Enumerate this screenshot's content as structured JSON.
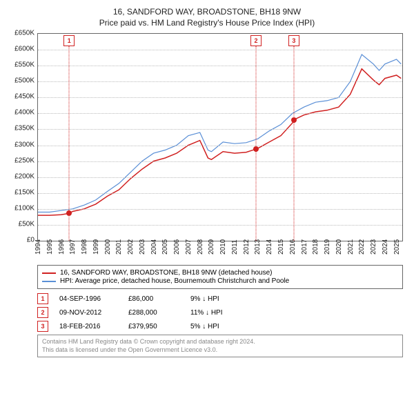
{
  "titles": {
    "main": "16, SANDFORD WAY, BROADSTONE, BH18 9NW",
    "sub": "Price paid vs. HM Land Registry's House Price Index (HPI)"
  },
  "chart": {
    "type": "line",
    "background_color": "#ffffff",
    "border_color": "#666666",
    "grid_color": "#bbbbbb",
    "x": {
      "min": 1994,
      "max": 2025.5,
      "ticks": [
        1994,
        1995,
        1996,
        1997,
        1998,
        1999,
        2000,
        2001,
        2002,
        2003,
        2004,
        2005,
        2006,
        2007,
        2008,
        2009,
        2010,
        2011,
        2012,
        2013,
        2014,
        2015,
        2016,
        2017,
        2018,
        2019,
        2020,
        2021,
        2022,
        2023,
        2024,
        2025
      ],
      "tick_fontsize": 10
    },
    "y": {
      "min": 0,
      "max": 650000,
      "tick_step": 50000,
      "ticks": [
        0,
        50000,
        100000,
        150000,
        200000,
        250000,
        300000,
        350000,
        400000,
        450000,
        500000,
        550000,
        600000,
        650000
      ],
      "tick_labels": [
        "£0",
        "£50K",
        "£100K",
        "£150K",
        "£200K",
        "£250K",
        "£300K",
        "£350K",
        "£400K",
        "£450K",
        "£500K",
        "£550K",
        "£600K",
        "£650K"
      ],
      "tick_fontsize": 10
    },
    "series": [
      {
        "name": "subject",
        "label": "16, SANDFORD WAY, BROADSTONE, BH18 9NW (detached house)",
        "color": "#d02020",
        "line_width": 1.5,
        "x": [
          1994,
          1995,
          1996,
          1996.7,
          1997,
          1998,
          1999,
          2000,
          2001,
          2002,
          2003,
          2004,
          2005,
          2006,
          2007,
          2008,
          2008.7,
          2009,
          2010,
          2011,
          2012,
          2012.85,
          2013,
          2014,
          2015,
          2016,
          2016.13,
          2017,
          2018,
          2019,
          2020,
          2021,
          2022,
          2023,
          2023.5,
          2024,
          2025,
          2025.4
        ],
        "y": [
          80000,
          80000,
          82000,
          86000,
          92000,
          100000,
          115000,
          140000,
          160000,
          195000,
          225000,
          250000,
          260000,
          275000,
          300000,
          315000,
          260000,
          255000,
          280000,
          275000,
          278000,
          288000,
          290000,
          310000,
          330000,
          370000,
          379950,
          395000,
          405000,
          410000,
          420000,
          460000,
          540000,
          505000,
          490000,
          510000,
          520000,
          510000
        ]
      },
      {
        "name": "hpi",
        "label": "HPI: Average price, detached house, Bournemouth Christchurch and Poole",
        "color": "#5a8fd6",
        "line_width": 1.2,
        "x": [
          1994,
          1995,
          1996,
          1997,
          1998,
          1999,
          2000,
          2001,
          2002,
          2003,
          2004,
          2005,
          2006,
          2007,
          2008,
          2008.7,
          2009,
          2010,
          2011,
          2012,
          2013,
          2014,
          2015,
          2016,
          2017,
          2018,
          2019,
          2020,
          2021,
          2022,
          2023,
          2023.5,
          2024,
          2025,
          2025.4
        ],
        "y": [
          90000,
          90000,
          95000,
          100000,
          112000,
          128000,
          155000,
          180000,
          215000,
          250000,
          275000,
          285000,
          300000,
          330000,
          340000,
          285000,
          280000,
          310000,
          305000,
          308000,
          320000,
          345000,
          365000,
          400000,
          420000,
          435000,
          440000,
          450000,
          500000,
          585000,
          555000,
          535000,
          555000,
          570000,
          555000
        ]
      }
    ]
  },
  "markers": [
    {
      "n": "1",
      "x": 1996.7,
      "y": 86000
    },
    {
      "n": "2",
      "x": 2012.85,
      "y": 288000
    },
    {
      "n": "3",
      "x": 2016.13,
      "y": 379950
    }
  ],
  "legend": {
    "items": [
      {
        "color": "#d02020",
        "label": "16, SANDFORD WAY, BROADSTONE, BH18 9NW (detached house)"
      },
      {
        "color": "#5a8fd6",
        "label": "HPI: Average price, detached house, Bournemouth Christchurch and Poole"
      }
    ]
  },
  "sales": [
    {
      "n": "1",
      "date": "04-SEP-1996",
      "price": "£86,000",
      "delta": "9% ↓ HPI"
    },
    {
      "n": "2",
      "date": "09-NOV-2012",
      "price": "£288,000",
      "delta": "11% ↓ HPI"
    },
    {
      "n": "3",
      "date": "18-FEB-2016",
      "price": "£379,950",
      "delta": "5% ↓ HPI"
    }
  ],
  "attribution": {
    "line1": "Contains HM Land Registry data © Crown copyright and database right 2024.",
    "line2": "This data is licensed under the Open Government Licence v3.0."
  },
  "marker_style": {
    "box_border_color": "#d02020",
    "box_text_color": "#d02020",
    "vline_color": "#d02020",
    "dot_color": "#d02020"
  }
}
